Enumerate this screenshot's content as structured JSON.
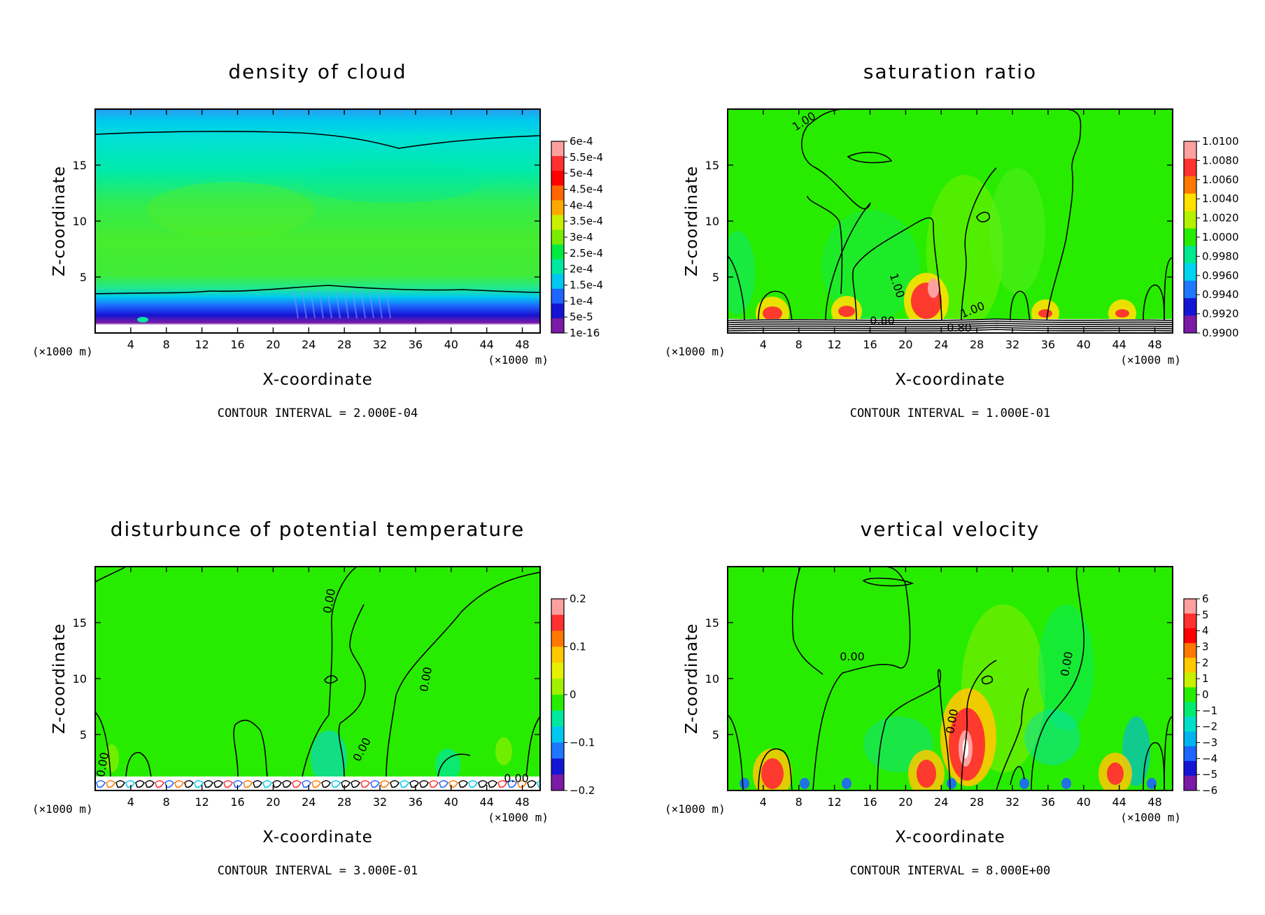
{
  "chart_data": [
    {
      "type": "heatmap",
      "title": "density of cloud",
      "xlabel": "X-coordinate",
      "ylabel": "Z-coordinate",
      "x_unit": "(×1000 m)",
      "y_unit": "(×1000 m)",
      "xlim": [
        0,
        50
      ],
      "ylim": [
        0,
        20
      ],
      "xticks": [
        4,
        8,
        12,
        16,
        20,
        24,
        28,
        32,
        36,
        40,
        44,
        48
      ],
      "yticks": [
        5,
        10,
        15
      ],
      "colorbar": {
        "labels": [
          "6e-4",
          "5.5e-4",
          "5e-4",
          "4.5e-4",
          "4e-4",
          "3.5e-4",
          "3e-4",
          "2.5e-4",
          "2e-4",
          "1.5e-4",
          "1e-4",
          "5e-5",
          "1e-16"
        ],
        "colors": [
          "#ffa0a0",
          "#ff3030",
          "#ff0000",
          "#ff6600",
          "#ffaa00",
          "#c8f000",
          "#7aec00",
          "#00ec40",
          "#00e8a0",
          "#00c8f0",
          "#1e64ff",
          "#1414d4",
          "#7a1aa6"
        ]
      },
      "contour_labels": [],
      "contour_interval": "CONTOUR INTERVAL = 2.000E-04"
    },
    {
      "type": "heatmap",
      "title": "saturation ratio",
      "xlabel": "X-coordinate",
      "ylabel": "Z-coordinate",
      "x_unit": "(×1000 m)",
      "y_unit": "(×1000 m)",
      "xlim": [
        0,
        50
      ],
      "ylim": [
        0,
        20
      ],
      "xticks": [
        4,
        8,
        12,
        16,
        20,
        24,
        28,
        32,
        36,
        40,
        44,
        48
      ],
      "yticks": [
        5,
        10,
        15
      ],
      "colorbar": {
        "labels": [
          "1.0100",
          "1.0080",
          "1.0060",
          "1.0040",
          "1.0020",
          "1.0000",
          "0.9980",
          "0.9960",
          "0.9940",
          "0.9920",
          "0.9900"
        ],
        "colors": [
          "#ffa0a0",
          "#ff3030",
          "#ff7800",
          "#ffe000",
          "#b4f000",
          "#28ec00",
          "#00e890",
          "#00d4f0",
          "#1e78ff",
          "#1414d4",
          "#7a1aa6"
        ]
      },
      "contour_labels": [
        "1.00",
        "1.00",
        "1.00",
        "0.80",
        "0.80"
      ],
      "contour_interval": "CONTOUR INTERVAL = 1.000E-01"
    },
    {
      "type": "heatmap",
      "title": "disturbunce of potential temperature",
      "xlabel": "X-coordinate",
      "ylabel": "Z-coordinate",
      "x_unit": "(×1000 m)",
      "y_unit": "(×1000 m)",
      "xlim": [
        0,
        50
      ],
      "ylim": [
        0,
        20
      ],
      "xticks": [
        4,
        8,
        12,
        16,
        20,
        24,
        28,
        32,
        36,
        40,
        44,
        48
      ],
      "yticks": [
        5,
        10,
        15
      ],
      "colorbar": {
        "labels": [
          "0.2",
          "0.1",
          "0",
          "−0.1",
          "−0.2"
        ],
        "colors": [
          "#ffa0a0",
          "#ff3030",
          "#ff7800",
          "#ffc800",
          "#e6f000",
          "#a0f000",
          "#28ec00",
          "#00e8a0",
          "#00c8f0",
          "#1e78ff",
          "#1414d4",
          "#7a1aa6"
        ]
      },
      "contour_labels": [
        "0.00",
        "0.00",
        "0.00",
        "0.00",
        "0.00"
      ],
      "contour_interval": "CONTOUR INTERVAL = 3.000E-01"
    },
    {
      "type": "heatmap",
      "title": "vertical velocity",
      "xlabel": "X-coordinate",
      "ylabel": "Z-coordinate",
      "x_unit": "(×1000 m)",
      "y_unit": "(×1000 m)",
      "xlim": [
        0,
        50
      ],
      "ylim": [
        0,
        20
      ],
      "xticks": [
        4,
        8,
        12,
        16,
        20,
        24,
        28,
        32,
        36,
        40,
        44,
        48
      ],
      "yticks": [
        5,
        10,
        15
      ],
      "colorbar": {
        "labels": [
          "6",
          "5",
          "4",
          "3",
          "2",
          "1",
          "0",
          "−1",
          "−2",
          "−3",
          "−4",
          "−5",
          "−6"
        ],
        "colors": [
          "#ffa0a0",
          "#ff3030",
          "#ff0000",
          "#ff7800",
          "#ffc800",
          "#c8f000",
          "#28ec00",
          "#00ec70",
          "#00e0c8",
          "#00b4f0",
          "#1e64ff",
          "#1414d4",
          "#7a1aa6"
        ]
      },
      "contour_labels": [
        "0.00",
        "0.00",
        "0.00"
      ],
      "contour_interval": "CONTOUR INTERVAL = 8.000E+00"
    }
  ]
}
